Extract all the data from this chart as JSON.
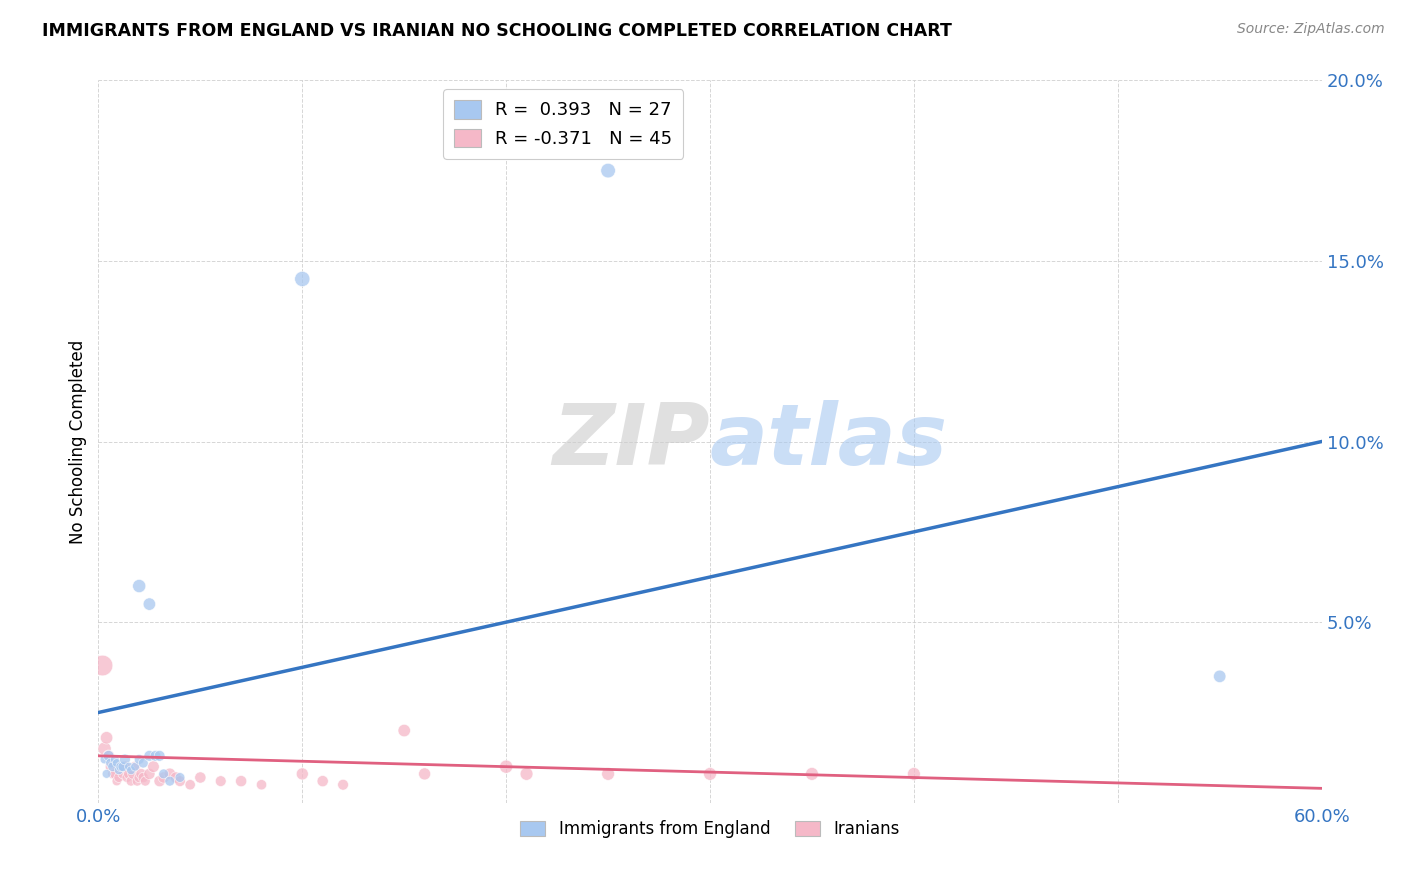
{
  "title": "IMMIGRANTS FROM ENGLAND VS IRANIAN NO SCHOOLING COMPLETED CORRELATION CHART",
  "source": "Source: ZipAtlas.com",
  "ylabel": "No Schooling Completed",
  "xlabel_legend_left": "Immigrants from England",
  "xlabel_legend_right": "Iranians",
  "xlim": [
    0.0,
    0.6
  ],
  "ylim": [
    0.0,
    0.2
  ],
  "xticks": [
    0.0,
    0.1,
    0.2,
    0.3,
    0.4,
    0.5,
    0.6
  ],
  "yticks": [
    0.0,
    0.05,
    0.1,
    0.15,
    0.2
  ],
  "blue_r": 0.393,
  "blue_n": 27,
  "pink_r": -0.371,
  "pink_n": 45,
  "blue_color": "#A8C8F0",
  "pink_color": "#F5B8C8",
  "blue_line_color": "#3575C2",
  "pink_line_color": "#E06080",
  "blue_line": [
    [
      0.0,
      0.025
    ],
    [
      0.6,
      0.1
    ]
  ],
  "pink_line": [
    [
      0.0,
      0.013
    ],
    [
      0.6,
      0.004
    ]
  ],
  "blue_scatter": [
    [
      0.003,
      0.012
    ],
    [
      0.005,
      0.013
    ],
    [
      0.006,
      0.011
    ],
    [
      0.007,
      0.01
    ],
    [
      0.008,
      0.012
    ],
    [
      0.009,
      0.011
    ],
    [
      0.01,
      0.009
    ],
    [
      0.011,
      0.01
    ],
    [
      0.012,
      0.01
    ],
    [
      0.013,
      0.012
    ],
    [
      0.015,
      0.01
    ],
    [
      0.016,
      0.009
    ],
    [
      0.018,
      0.01
    ],
    [
      0.02,
      0.012
    ],
    [
      0.022,
      0.011
    ],
    [
      0.025,
      0.013
    ],
    [
      0.028,
      0.013
    ],
    [
      0.03,
      0.013
    ],
    [
      0.032,
      0.008
    ],
    [
      0.035,
      0.006
    ],
    [
      0.04,
      0.007
    ],
    [
      0.02,
      0.06
    ],
    [
      0.025,
      0.055
    ],
    [
      0.1,
      0.145
    ],
    [
      0.25,
      0.175
    ],
    [
      0.55,
      0.035
    ],
    [
      0.004,
      0.008
    ]
  ],
  "pink_scatter": [
    [
      0.002,
      0.038
    ],
    [
      0.003,
      0.015
    ],
    [
      0.004,
      0.018
    ],
    [
      0.005,
      0.013
    ],
    [
      0.006,
      0.01
    ],
    [
      0.007,
      0.008
    ],
    [
      0.008,
      0.008
    ],
    [
      0.009,
      0.006
    ],
    [
      0.01,
      0.007
    ],
    [
      0.011,
      0.01
    ],
    [
      0.012,
      0.008
    ],
    [
      0.013,
      0.01
    ],
    [
      0.014,
      0.007
    ],
    [
      0.015,
      0.008
    ],
    [
      0.016,
      0.006
    ],
    [
      0.017,
      0.008
    ],
    [
      0.018,
      0.01
    ],
    [
      0.019,
      0.006
    ],
    [
      0.02,
      0.007
    ],
    [
      0.021,
      0.008
    ],
    [
      0.022,
      0.007
    ],
    [
      0.023,
      0.006
    ],
    [
      0.025,
      0.008
    ],
    [
      0.027,
      0.01
    ],
    [
      0.03,
      0.006
    ],
    [
      0.032,
      0.007
    ],
    [
      0.035,
      0.008
    ],
    [
      0.038,
      0.007
    ],
    [
      0.04,
      0.006
    ],
    [
      0.045,
      0.005
    ],
    [
      0.05,
      0.007
    ],
    [
      0.06,
      0.006
    ],
    [
      0.07,
      0.006
    ],
    [
      0.08,
      0.005
    ],
    [
      0.1,
      0.008
    ],
    [
      0.11,
      0.006
    ],
    [
      0.12,
      0.005
    ],
    [
      0.15,
      0.02
    ],
    [
      0.16,
      0.008
    ],
    [
      0.2,
      0.01
    ],
    [
      0.21,
      0.008
    ],
    [
      0.25,
      0.008
    ],
    [
      0.3,
      0.008
    ],
    [
      0.35,
      0.008
    ],
    [
      0.4,
      0.008
    ]
  ],
  "blue_sizes": [
    40,
    60,
    50,
    50,
    40,
    40,
    40,
    50,
    50,
    60,
    40,
    40,
    40,
    50,
    50,
    60,
    60,
    60,
    50,
    50,
    50,
    90,
    80,
    120,
    110,
    80,
    40
  ],
  "pink_sizes": [
    220,
    90,
    80,
    70,
    60,
    50,
    55,
    45,
    50,
    60,
    50,
    65,
    50,
    60,
    50,
    60,
    60,
    50,
    55,
    60,
    55,
    50,
    65,
    70,
    65,
    65,
    70,
    65,
    60,
    55,
    65,
    60,
    65,
    55,
    75,
    65,
    60,
    80,
    75,
    90,
    85,
    85,
    85,
    85,
    85
  ]
}
